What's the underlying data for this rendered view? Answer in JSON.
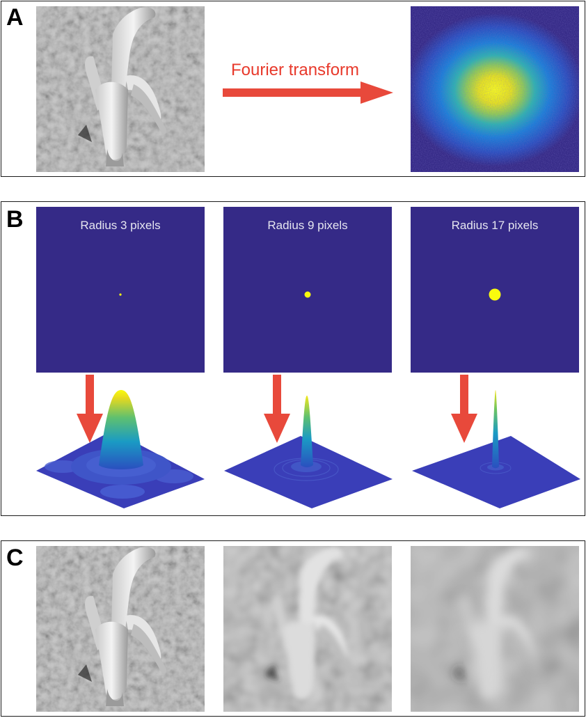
{
  "panels": {
    "a": {
      "letter": "A",
      "transform_label": "Fourier transform"
    },
    "b": {
      "letter": "B",
      "masks": [
        {
          "label": "Radius 3 pixels",
          "radius_px": 3
        },
        {
          "label": "Radius 9 pixels",
          "radius_px": 9
        },
        {
          "label": "Radius 17 pixels",
          "radius_px": 17
        }
      ]
    },
    "c": {
      "letter": "C"
    }
  },
  "colors": {
    "arrow": "#e8493b",
    "mask_background": "#352a87",
    "mask_spot": "#f9fb0e",
    "panel_border": "#1a1a1a"
  },
  "icons": {
    "image_subject": "banana-photo",
    "spectrum": "fourier-spectrum",
    "arrow": "red-arrow"
  }
}
